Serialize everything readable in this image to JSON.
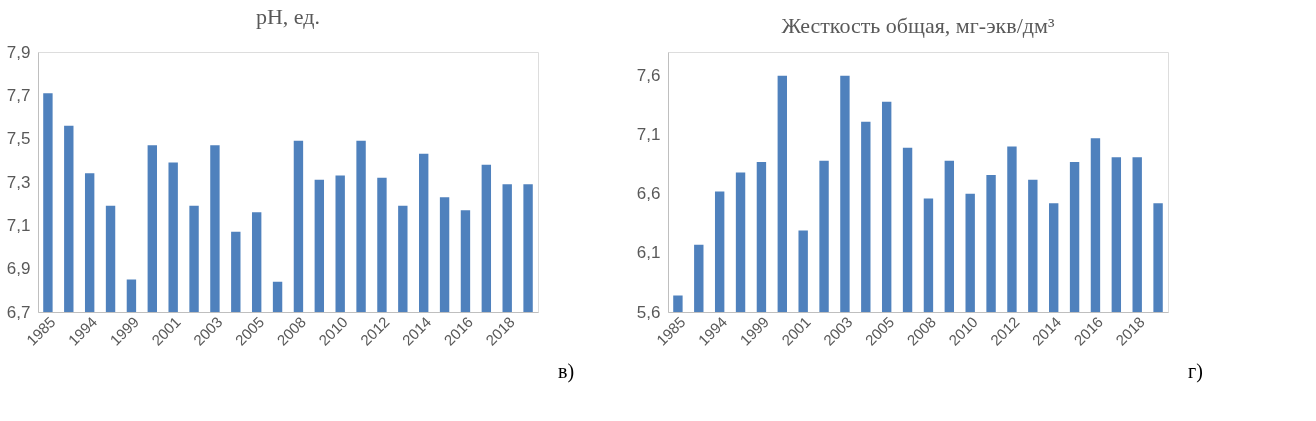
{
  "chart_data": [
    {
      "type": "bar",
      "title": "pH, ед.",
      "categories": [
        "1985",
        null,
        "1994",
        null,
        "1999",
        null,
        "2001",
        null,
        "2003",
        null,
        "2005",
        null,
        "2008",
        null,
        "2010",
        null,
        "2012",
        null,
        "2014",
        null,
        "2016",
        null,
        "2018",
        null
      ],
      "series": [
        {
          "color": "#4f81bd",
          "values": [
            7.71,
            7.56,
            7.34,
            7.19,
            6.85,
            7.47,
            7.39,
            7.19,
            7.47,
            7.07,
            7.16,
            6.84,
            7.49,
            7.31,
            7.33,
            7.49,
            7.32,
            7.19,
            7.43,
            7.23,
            7.17,
            7.38,
            7.29,
            7.29
          ]
        }
      ],
      "ylim": [
        6.7,
        7.9
      ],
      "yticks": [
        {
          "value": 6.7,
          "label": "6,7"
        },
        {
          "value": 6.9,
          "label": "6,9"
        },
        {
          "value": 7.1,
          "label": "7,1"
        },
        {
          "value": 7.3,
          "label": "7,3"
        },
        {
          "value": 7.5,
          "label": "7,5"
        },
        {
          "value": 7.7,
          "label": "7,7"
        },
        {
          "value": 7.9,
          "label": "7,9"
        }
      ],
      "grid": false,
      "annotations": [
        "в)"
      ]
    },
    {
      "type": "bar",
      "title": "Жесткость общая, мг-экв/дм³",
      "categories": [
        "1985",
        null,
        "1994",
        null,
        "1999",
        null,
        "2001",
        null,
        "2003",
        null,
        "2005",
        null,
        "2008",
        null,
        "2010",
        null,
        "2012",
        null,
        "2014",
        null,
        "2016",
        null,
        "2018",
        null
      ],
      "series": [
        {
          "color": "#4f81bd",
          "values": [
            5.74,
            6.17,
            6.62,
            6.78,
            6.87,
            7.6,
            6.29,
            6.88,
            7.6,
            7.21,
            7.38,
            6.99,
            6.56,
            6.88,
            6.6,
            6.76,
            7.0,
            6.72,
            6.52,
            6.87,
            7.07,
            6.91,
            6.91,
            6.52
          ]
        }
      ],
      "ylim": [
        5.6,
        7.8
      ],
      "yticks": [
        {
          "value": 5.6,
          "label": "5,6"
        },
        {
          "value": 6.1,
          "label": "6,1"
        },
        {
          "value": 6.6,
          "label": "6,6"
        },
        {
          "value": 7.1,
          "label": "7,1"
        },
        {
          "value": 7.6,
          "label": "7,6"
        }
      ],
      "grid": false,
      "annotations": [
        "г)"
      ]
    }
  ]
}
